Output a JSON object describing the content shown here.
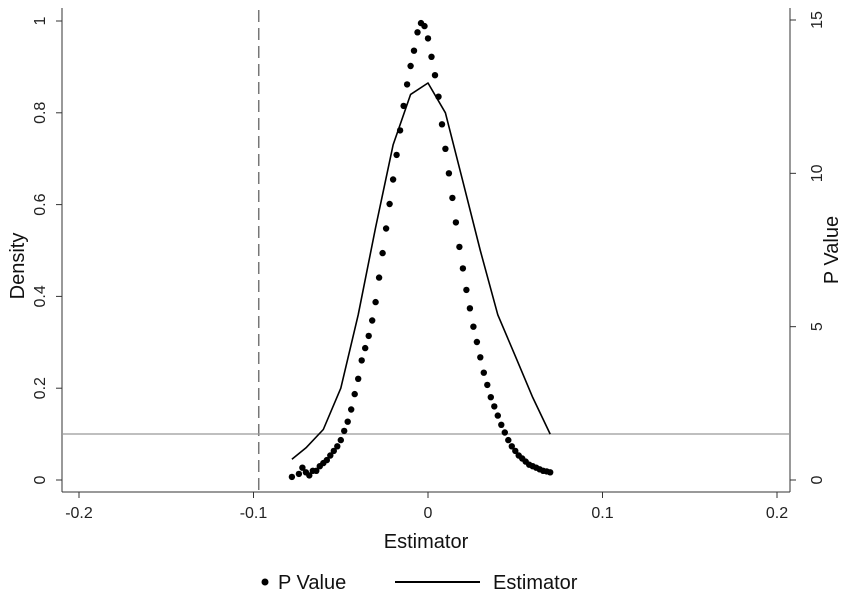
{
  "chart_data": {
    "type": "scatter",
    "title": "",
    "xlabel": "Estimator",
    "ylabel_left": "Density",
    "ylabel_right": "P Value",
    "xlim": [
      -0.2,
      0.2
    ],
    "ylim_left": [
      0,
      1
    ],
    "ylim_right": [
      0,
      15
    ],
    "x_ticks": [
      "-0.2",
      "-0.1",
      "0",
      "0.1",
      "0.2"
    ],
    "x_tick_values": [
      -0.2,
      -0.1,
      0,
      0.1,
      0.2
    ],
    "y_left_ticks": [
      "0",
      "0.2",
      "0.4",
      "0.6",
      "0.8",
      "1"
    ],
    "y_left_tick_values": [
      0,
      0.2,
      0.4,
      0.6,
      0.8,
      1
    ],
    "y_right_ticks": [
      "0",
      "5",
      "10",
      "15"
    ],
    "y_right_tick_values": [
      0,
      5,
      10,
      15
    ],
    "reference_lines": {
      "vertical_dashed_x": -0.097,
      "horizontal_p_value": 1.5
    },
    "grid": false,
    "legend_position": "bottom",
    "legend": [
      "P Value",
      "Estimator"
    ],
    "series": [
      {
        "name": "P Value",
        "axis": "right",
        "style": "markers",
        "x": [
          -0.078,
          -0.074,
          -0.072,
          -0.07,
          -0.068,
          -0.066,
          -0.064,
          -0.062,
          -0.06,
          -0.058,
          -0.056,
          -0.054,
          -0.052,
          -0.05,
          -0.048,
          -0.046,
          -0.044,
          -0.042,
          -0.04,
          -0.038,
          -0.036,
          -0.034,
          -0.032,
          -0.03,
          -0.028,
          -0.026,
          -0.024,
          -0.022,
          -0.02,
          -0.018,
          -0.016,
          -0.014,
          -0.012,
          -0.01,
          -0.008,
          -0.006,
          -0.004,
          -0.002,
          0,
          0.002,
          0.004,
          0.006,
          0.008,
          0.01,
          0.012,
          0.014,
          0.016,
          0.018,
          0.02,
          0.022,
          0.024,
          0.026,
          0.028,
          0.03,
          0.032,
          0.034,
          0.036,
          0.038,
          0.04,
          0.042,
          0.044,
          0.046,
          0.048,
          0.05,
          0.052,
          0.054,
          0.056,
          0.058,
          0.06,
          0.062,
          0.064,
          0.066,
          0.068,
          0.07
        ],
        "y": [
          0.1,
          0.2,
          0.4,
          0.25,
          0.15,
          0.3,
          0.3,
          0.45,
          0.55,
          0.65,
          0.8,
          0.95,
          1.1,
          1.3,
          1.6,
          1.9,
          2.3,
          2.8,
          3.3,
          3.9,
          4.3,
          4.7,
          5.2,
          5.8,
          6.6,
          7.4,
          8.2,
          9.0,
          9.8,
          10.6,
          11.4,
          12.2,
          12.9,
          13.5,
          14.0,
          14.6,
          14.9,
          14.8,
          14.4,
          13.8,
          13.2,
          12.5,
          11.6,
          10.8,
          10.0,
          9.2,
          8.4,
          7.6,
          6.9,
          6.2,
          5.6,
          5.0,
          4.5,
          4.0,
          3.5,
          3.1,
          2.7,
          2.4,
          2.1,
          1.8,
          1.55,
          1.3,
          1.1,
          0.95,
          0.8,
          0.7,
          0.6,
          0.5,
          0.45,
          0.4,
          0.35,
          0.3,
          0.28,
          0.25
        ]
      },
      {
        "name": "Estimator",
        "axis": "left",
        "style": "line",
        "x": [
          -0.078,
          -0.07,
          -0.06,
          -0.05,
          -0.04,
          -0.03,
          -0.02,
          -0.01,
          0,
          0.01,
          0.02,
          0.03,
          0.04,
          0.05,
          0.06,
          0.07
        ],
        "y": [
          0.045,
          0.07,
          0.11,
          0.2,
          0.36,
          0.55,
          0.73,
          0.84,
          0.865,
          0.8,
          0.65,
          0.5,
          0.36,
          0.27,
          0.18,
          0.1
        ]
      }
    ]
  }
}
